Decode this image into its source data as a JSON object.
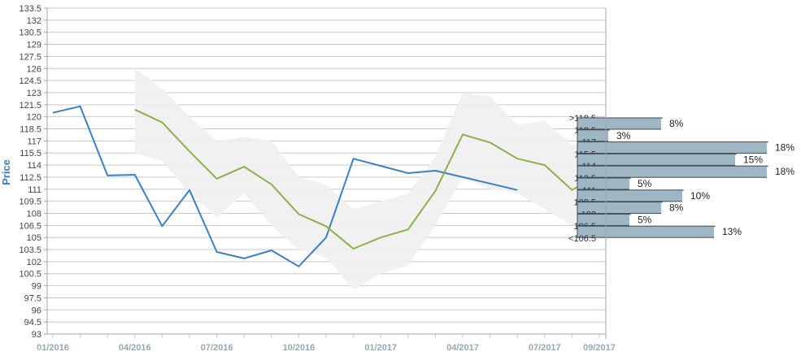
{
  "chart_data": {
    "type": "line",
    "ylabel": "Price",
    "ylim": [
      93,
      133.5
    ],
    "y_ticks": [
      "133.5",
      "132",
      "130.5",
      "129",
      "127.5",
      "126",
      "124.5",
      "123",
      "121.5",
      "120",
      "118.5",
      "117",
      "115.5",
      "114",
      "112.5",
      "111",
      "109.5",
      "108",
      "106.5",
      "105",
      "103.5",
      "102",
      "100.5",
      "99",
      "97.5",
      "96",
      "94.5",
      "93"
    ],
    "x_ticks": [
      "01/2016",
      "04/2016",
      "07/2016",
      "10/2016",
      "01/2017",
      "04/2017",
      "07/2017",
      "09/2017"
    ],
    "grid": true,
    "series": [
      {
        "color": "#3a80c9",
        "x": [
          "2016-01",
          "2016-02",
          "2016-03",
          "2016-04",
          "2016-05",
          "2016-06",
          "2016-07",
          "2016-08",
          "2016-09",
          "2016-10",
          "2016-11",
          "2016-12",
          "2017-01",
          "2017-02",
          "2017-03",
          "2017-04",
          "2017-05",
          "2017-06"
        ],
        "values": [
          120.5,
          121.3,
          112.7,
          112.8,
          106.4,
          110.9,
          103.2,
          102.4,
          103.4,
          101.4,
          105.0,
          114.8,
          113.9,
          113.0,
          113.3,
          112.5,
          111.7,
          110.9
        ]
      },
      {
        "color": "#8cb04a",
        "x": [
          "2016-04",
          "2016-05",
          "2016-06",
          "2016-07",
          "2016-08",
          "2016-09",
          "2016-10",
          "2016-11",
          "2016-12",
          "2017-01",
          "2017-02",
          "2017-03",
          "2017-04",
          "2017-05",
          "2017-06",
          "2017-07",
          "2017-08",
          "2017-09"
        ],
        "values": [
          120.9,
          119.3,
          115.7,
          112.3,
          113.8,
          111.6,
          107.9,
          106.4,
          103.6,
          105.0,
          106.0,
          110.8,
          117.8,
          116.8,
          114.8,
          114.0,
          110.9,
          112.9
        ]
      }
    ],
    "band": {
      "color": "#efefef",
      "x": [
        "2016-04",
        "2016-05",
        "2016-06",
        "2016-07",
        "2016-08",
        "2016-09",
        "2016-10",
        "2016-11",
        "2016-12",
        "2017-01",
        "2017-02",
        "2017-03",
        "2017-04",
        "2017-05",
        "2017-06",
        "2017-07",
        "2017-08",
        "2017-09"
      ],
      "upper": [
        126.0,
        123.5,
        120.0,
        117.0,
        117.5,
        117.0,
        112.5,
        111.5,
        108.5,
        109.5,
        110.5,
        115.0,
        123.0,
        122.5,
        119.0,
        119.5,
        116.5,
        117.0
      ],
      "lower": [
        115.5,
        114.5,
        110.5,
        107.5,
        110.5,
        106.5,
        103.5,
        102.5,
        98.5,
        100.5,
        101.5,
        106.5,
        112.5,
        111.0,
        110.5,
        108.5,
        106.5,
        107.5
      ]
    },
    "distribution": {
      "color": "#9fb6c4",
      "bins": [
        {
          "label": ">118.5",
          "pct": 8,
          "pct_label": "8%"
        },
        {
          "label": "118.5",
          "pct": 3,
          "pct_label": "3%"
        },
        {
          "label": "117",
          "pct": 18,
          "pct_label": "18%"
        },
        {
          "label": "115.5",
          "pct": 15,
          "pct_label": "15%"
        },
        {
          "label": "114",
          "pct": 18,
          "pct_label": "18%"
        },
        {
          "label": "112.5",
          "pct": 5,
          "pct_label": "5%"
        },
        {
          "label": "111",
          "pct": 10,
          "pct_label": "10%"
        },
        {
          "label": "109.5",
          "pct": 8,
          "pct_label": "8%"
        },
        {
          "label": "108",
          "pct": 5,
          "pct_label": "5%"
        },
        {
          "label": "106.5",
          "pct": 13,
          "pct_label": "13%"
        },
        {
          "label": "<106.5",
          "pct": null,
          "pct_label": ""
        }
      ]
    }
  }
}
